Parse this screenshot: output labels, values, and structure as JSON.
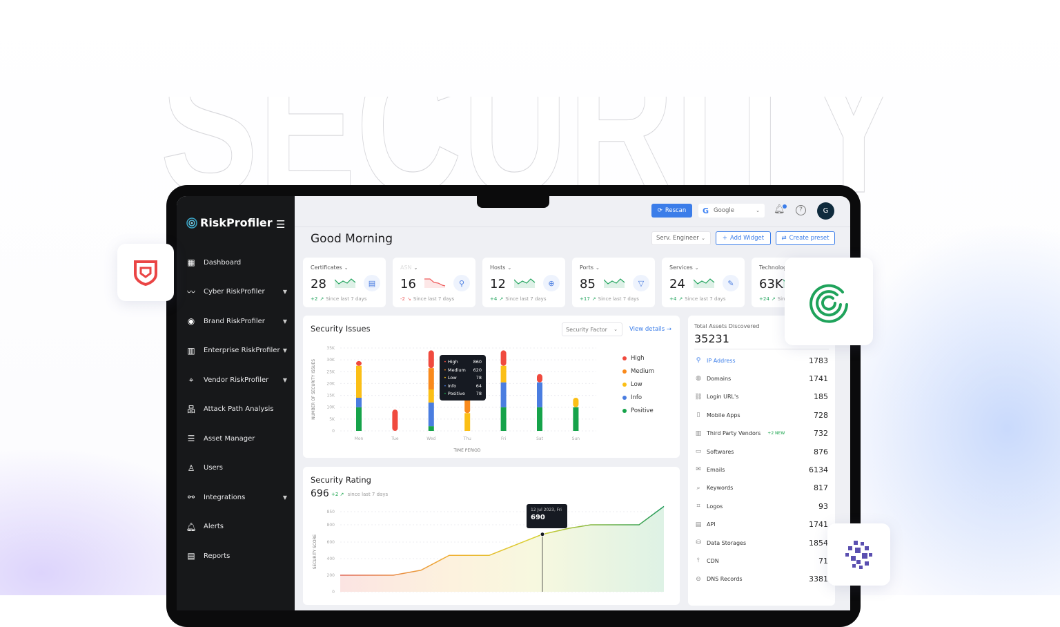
{
  "watermark": "SECURITY",
  "app": {
    "name": "RiskProfiler",
    "greeting": "Good Morning"
  },
  "sidebar": {
    "items": [
      {
        "label": "Dashboard",
        "icon": "grid-icon",
        "caret": false
      },
      {
        "label": "Cyber RiskProfiler",
        "icon": "activity-icon",
        "caret": true
      },
      {
        "label": "Brand RiskProfiler",
        "icon": "eye-icon",
        "caret": true
      },
      {
        "label": "Enterprise RiskProfiler",
        "icon": "building-icon",
        "caret": true
      },
      {
        "label": "Vendor RiskProfiler",
        "icon": "crosshair-icon",
        "caret": true
      },
      {
        "label": "Attack Path Analysis",
        "icon": "sitemap-icon",
        "caret": false
      },
      {
        "label": "Asset Manager",
        "icon": "list-icon",
        "caret": false
      },
      {
        "label": "Users",
        "icon": "user-icon",
        "caret": false
      },
      {
        "label": "Integrations",
        "icon": "share-nodes-icon",
        "caret": true
      },
      {
        "label": "Alerts",
        "icon": "bell-icon",
        "caret": false
      },
      {
        "label": "Reports",
        "icon": "document-icon",
        "caret": false
      }
    ]
  },
  "header": {
    "rescan": "Rescan",
    "org": "Google",
    "avatar": "G",
    "role": "Serv. Engineer",
    "add_widget": "Add Widget",
    "create_preset": "Create preset"
  },
  "stats": [
    {
      "label": "Certificates",
      "value": "28",
      "delta": "+2",
      "note": "Since last 7 days",
      "trend": "up",
      "icon": "certificate-icon"
    },
    {
      "label": "ASN",
      "value": "16",
      "delta": "-2",
      "note": "Since last 7 days",
      "trend": "down",
      "icon": "network-icon"
    },
    {
      "label": "Hosts",
      "value": "12",
      "delta": "+4",
      "note": "Since last 7 days",
      "trend": "up",
      "icon": "server-icon"
    },
    {
      "label": "Ports",
      "value": "85",
      "delta": "+17",
      "note": "Since last 7 days",
      "trend": "up",
      "icon": "port-icon"
    },
    {
      "label": "Services",
      "value": "24",
      "delta": "+4",
      "note": "Since last 7 days",
      "trend": "up",
      "icon": "wrench-icon"
    },
    {
      "label": "Technologies",
      "value": "63K",
      "delta": "+24",
      "note": "Since last 7 days",
      "trend": "up",
      "icon": "chip-icon"
    }
  ],
  "issues": {
    "title": "Security Issues",
    "filter": "Security Factor",
    "view_details": "View details",
    "tooltip": [
      {
        "name": "High",
        "value": "860"
      },
      {
        "name": "Medium",
        "value": "620"
      },
      {
        "name": "Low",
        "value": "78"
      },
      {
        "name": "Info",
        "value": "64"
      },
      {
        "name": "Positive",
        "value": "78"
      }
    ]
  },
  "rating": {
    "title": "Security Rating",
    "value": "696",
    "delta": "+2",
    "note": "since last 7 days",
    "tooltip_date": "12 Jul 2023, Fri",
    "tooltip_value": "690"
  },
  "assets": {
    "title": "Total Assets Discovered",
    "total": "35231",
    "rows": [
      {
        "label": "IP Address",
        "value": "1783",
        "icon": "location-icon",
        "active": true
      },
      {
        "label": "Domains",
        "value": "1741",
        "icon": "globe-icon"
      },
      {
        "label": "Login URL's",
        "value": "185",
        "icon": "link-icon"
      },
      {
        "label": "Mobile Apps",
        "value": "728",
        "icon": "mobile-icon"
      },
      {
        "label": "Third Party Vendors",
        "value": "732",
        "icon": "building-icon",
        "badge": "+2 NEW"
      },
      {
        "label": "Softwares",
        "value": "876",
        "icon": "window-icon"
      },
      {
        "label": "Emails",
        "value": "6134",
        "icon": "mail-icon"
      },
      {
        "label": "Keywords",
        "value": "817",
        "icon": "search-icon"
      },
      {
        "label": "Logos",
        "value": "93",
        "icon": "image-icon"
      },
      {
        "label": "API",
        "value": "1741",
        "icon": "api-file-icon"
      },
      {
        "label": "Data Storages",
        "value": "1854",
        "icon": "database-icon"
      },
      {
        "label": "CDN",
        "value": "71",
        "icon": "cdn-icon"
      },
      {
        "label": "DNS Records",
        "value": "3381",
        "icon": "dns-icon"
      }
    ]
  },
  "colors": {
    "accent": "#3b7de9",
    "sidebar": "#17181a",
    "high": "#f04a3e",
    "medium": "#f98a1c",
    "low": "#fbbf16",
    "info": "#4a7de0",
    "positive": "#16a34a"
  },
  "chart_data": [
    {
      "type": "bar",
      "stacked": true,
      "title": "Security Issues",
      "xlabel": "TIME PERIOD",
      "ylabel": "NUMBER OF SECURITY ISSUES",
      "categories": [
        "Mon",
        "Tue",
        "Wed",
        "Thu",
        "Fri",
        "Sat",
        "Sun"
      ],
      "yticks": [
        "0",
        "5K",
        "10K",
        "15K",
        "20K",
        "25K",
        "30K",
        "35K"
      ],
      "ylim": [
        0,
        35000
      ],
      "grid": true,
      "legend": "right",
      "series": [
        {
          "name": "Positive",
          "color": "#16a34a",
          "values": [
            10000,
            0,
            2000,
            0,
            10000,
            10000,
            10000
          ]
        },
        {
          "name": "Info",
          "color": "#4a7de0",
          "values": [
            4000,
            0,
            10000,
            0,
            10500,
            10500,
            0
          ]
        },
        {
          "name": "Low",
          "color": "#fbbf16",
          "values": [
            13500,
            0,
            5500,
            7500,
            7000,
            0,
            4000
          ]
        },
        {
          "name": "Medium",
          "color": "#f98a1c",
          "values": [
            0,
            0,
            9000,
            7000,
            0,
            0,
            0
          ]
        },
        {
          "name": "High",
          "color": "#f04a3e",
          "values": [
            2000,
            9000,
            7500,
            0,
            6500,
            3500,
            0
          ]
        }
      ]
    },
    {
      "type": "area",
      "title": "Security Rating",
      "ylabel": "SECURITY SCORE",
      "yticks": [
        0,
        200,
        400,
        600,
        800,
        850
      ],
      "grid": true,
      "values": [
        200,
        200,
        200,
        260,
        440,
        440,
        440,
        690,
        760,
        800,
        800,
        800,
        870
      ]
    }
  ]
}
